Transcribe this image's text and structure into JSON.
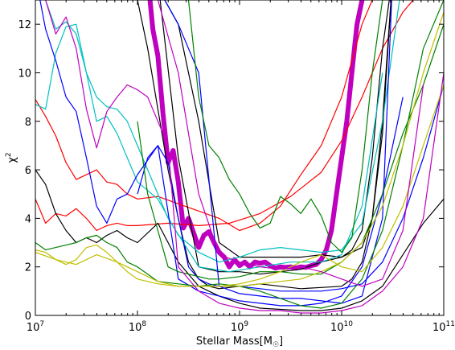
{
  "chart_data": {
    "type": "line",
    "xlabel": "Stellar Mass[M",
    "xlabel_sub": "☉",
    "xlabel_end": "]",
    "ylabel": "χ",
    "ylabel_sup": "2",
    "xscale": "log",
    "xlim": [
      10000000.0,
      100000000000.0
    ],
    "ylim": [
      0,
      13
    ],
    "grid": false,
    "x_ticks": [
      {
        "base": "10",
        "exp": "7",
        "value": 10000000.0
      },
      {
        "base": "10",
        "exp": "8",
        "value": 100000000.0
      },
      {
        "base": "10",
        "exp": "9",
        "value": 1000000000.0
      },
      {
        "base": "10",
        "exp": "10",
        "value": 10000000000.0
      },
      {
        "base": "10",
        "exp": "11",
        "value": 100000000000.0
      }
    ],
    "y_ticks": [
      "0",
      "2",
      "4",
      "6",
      "8",
      "10",
      "12"
    ],
    "series": [
      {
        "color": "#bf00bf",
        "width": 6,
        "log_x": [
          8.1,
          8.15,
          8.2,
          8.25,
          8.3,
          8.35,
          8.4,
          8.45,
          8.5,
          8.55,
          8.6,
          8.65,
          8.7,
          8.75,
          8.8,
          8.85,
          8.9,
          8.95,
          9.0,
          9.05,
          9.1,
          9.15,
          9.2,
          9.25,
          9.3,
          9.35,
          9.4,
          9.45,
          9.5,
          9.55,
          9.6,
          9.65,
          9.7,
          9.75,
          9.8,
          9.85,
          9.9,
          9.95,
          10.0,
          10.05,
          10.1,
          10.15,
          10.2,
          10.25,
          10.3,
          10.35
        ],
        "y": [
          14.0,
          11.8,
          10.7,
          8.3,
          6.3,
          6.8,
          5.5,
          3.6,
          4.0,
          3.4,
          2.8,
          3.3,
          3.45,
          3.0,
          2.6,
          2.4,
          2.0,
          2.3,
          2.05,
          2.2,
          2.0,
          2.2,
          2.15,
          2.2,
          2.05,
          1.95,
          2.0,
          1.98,
          2.0,
          1.95,
          2.0,
          1.98,
          2.05,
          2.1,
          2.3,
          2.7,
          3.5,
          5.0,
          6.5,
          8.0,
          10.0,
          12.0,
          13.0,
          14.0,
          14.0,
          14.0
        ]
      },
      {
        "color": "#ff0000",
        "width": 1.2,
        "log_x": [
          7.0,
          7.1,
          7.2,
          7.3,
          7.4,
          7.5,
          7.6,
          7.7,
          7.8,
          7.9,
          8.0,
          8.2,
          8.4,
          8.6,
          8.8,
          9.0,
          9.2,
          9.4,
          9.6,
          9.8,
          10.0,
          10.2,
          10.4
        ],
        "y": [
          8.9,
          8.2,
          7.4,
          6.3,
          5.6,
          5.8,
          6.0,
          5.5,
          5.4,
          5.0,
          4.8,
          4.9,
          4.6,
          4.3,
          4.0,
          3.5,
          3.8,
          4.5,
          5.8,
          7.0,
          9.0,
          12.0,
          14.0
        ]
      },
      {
        "color": "#ff0000",
        "width": 1.2,
        "log_x": [
          7.0,
          7.1,
          7.2,
          7.3,
          7.4,
          7.5,
          7.6,
          7.7,
          7.8,
          7.9,
          8.0,
          8.3,
          8.6,
          8.9,
          9.2,
          9.5,
          9.8,
          10.0,
          10.2,
          10.4,
          10.6,
          10.8,
          11.0
        ],
        "y": [
          4.8,
          3.8,
          4.2,
          4.1,
          4.4,
          4.0,
          3.5,
          3.7,
          3.8,
          3.7,
          3.7,
          3.8,
          3.7,
          3.8,
          4.2,
          4.9,
          5.9,
          7.2,
          9.0,
          11.0,
          12.5,
          13.5,
          14.0
        ]
      },
      {
        "color": "#000000",
        "width": 1.2,
        "log_x": [
          7.0,
          7.1,
          7.2,
          7.3,
          7.4,
          7.5,
          7.6,
          7.7,
          7.8,
          7.9,
          8.0,
          8.2,
          8.4,
          8.6,
          8.8,
          9.0,
          9.2,
          9.4,
          9.6,
          9.8,
          10.0,
          10.2,
          10.4,
          10.6,
          10.8,
          11.0
        ],
        "y": [
          6.0,
          5.4,
          4.2,
          3.5,
          3.0,
          3.2,
          3.0,
          3.3,
          3.5,
          3.2,
          3.0,
          3.8,
          2.2,
          1.2,
          0.8,
          0.5,
          0.3,
          0.25,
          0.2,
          0.2,
          0.3,
          0.6,
          1.2,
          2.5,
          3.8,
          4.8
        ]
      },
      {
        "color": "#000000",
        "width": 1.2,
        "log_x": [
          7.0,
          7.2,
          7.4,
          7.6,
          7.8,
          8.0,
          8.2,
          8.4,
          8.6,
          8.8,
          9.0,
          9.2,
          9.4,
          9.6,
          9.8,
          10.0,
          10.1,
          10.2,
          10.3,
          10.4,
          10.5
        ],
        "y": [
          14.0,
          13.5,
          14.0,
          13.0,
          13.8,
          14.0,
          13.8,
          6.5,
          2.0,
          1.8,
          1.8,
          1.7,
          1.8,
          1.9,
          2.2,
          2.4,
          2.7,
          3.5,
          6.5,
          11.0,
          14.0
        ]
      },
      {
        "color": "#000000",
        "width": 1.2,
        "log_x": [
          8.0,
          8.1,
          8.2,
          8.3,
          8.4,
          8.5,
          8.6,
          8.7,
          8.8,
          9.0,
          9.2,
          9.4,
          9.6,
          9.8,
          10.0,
          10.1,
          10.2,
          10.3,
          10.4,
          10.5
        ],
        "y": [
          13.0,
          11.0,
          8.5,
          6.0,
          4.0,
          2.2,
          1.5,
          1.2,
          1.1,
          1.2,
          1.3,
          1.2,
          1.1,
          1.15,
          1.2,
          1.5,
          2.2,
          4.0,
          8.0,
          14.0
        ]
      },
      {
        "color": "#000000",
        "width": 1.2,
        "log_x": [
          8.0,
          8.2,
          8.4,
          8.6,
          8.8,
          9.0,
          9.2,
          9.4,
          9.6,
          9.8,
          10.0,
          10.2,
          10.3,
          10.4,
          10.5
        ],
        "y": [
          14.0,
          13.5,
          12.0,
          8.0,
          3.0,
          2.4,
          2.4,
          2.4,
          2.4,
          2.5,
          2.4,
          2.8,
          4.0,
          7.5,
          14.0
        ]
      },
      {
        "color": "#00bfbf",
        "width": 1.2,
        "log_x": [
          7.0,
          7.1,
          7.2,
          7.3,
          7.4,
          7.5,
          7.6,
          7.7,
          7.8,
          7.9,
          8.0,
          8.2,
          8.4,
          8.6,
          8.8,
          9.0,
          9.2,
          9.4,
          9.6,
          9.8,
          10.0,
          10.2,
          10.4,
          10.6
        ],
        "y": [
          8.7,
          8.5,
          10.8,
          11.9,
          12.0,
          10.0,
          8.0,
          8.2,
          7.5,
          6.5,
          5.5,
          4.8,
          3.3,
          2.6,
          2.2,
          2.4,
          2.7,
          2.8,
          2.7,
          2.6,
          2.7,
          3.8,
          8.0,
          14.0
        ]
      },
      {
        "color": "#00bfbf",
        "width": 1.2,
        "log_x": [
          7.0,
          7.1,
          7.2,
          7.3,
          7.4,
          7.5,
          7.6,
          7.7,
          7.8,
          7.9,
          8.0,
          8.3,
          8.6,
          8.9,
          9.2,
          9.5,
          9.8,
          10.0,
          10.2,
          10.4
        ],
        "y": [
          14.0,
          13.0,
          11.8,
          12.1,
          11.6,
          10.0,
          9.0,
          8.6,
          8.5,
          8.0,
          7.0,
          4.0,
          2.0,
          1.8,
          2.0,
          2.2,
          2.2,
          2.5,
          4.5,
          10.0
        ]
      },
      {
        "color": "#0000ff",
        "width": 1.2,
        "log_x": [
          7.0,
          7.1,
          7.2,
          7.3,
          7.4,
          7.5,
          7.6,
          7.7,
          7.8,
          7.9,
          8.0,
          8.2,
          8.4,
          8.6,
          8.8,
          9.0,
          9.2,
          9.4,
          9.6,
          9.8,
          10.0,
          10.2,
          10.4,
          10.6
        ],
        "y": [
          14.0,
          11.8,
          10.5,
          9.0,
          8.4,
          6.5,
          4.5,
          3.8,
          4.8,
          5.0,
          5.8,
          7.0,
          1.5,
          1.0,
          0.8,
          0.6,
          0.5,
          0.4,
          0.4,
          0.5,
          0.8,
          2.0,
          5.0,
          9.0
        ]
      },
      {
        "color": "#0000ff",
        "width": 1.2,
        "log_x": [
          8.0,
          8.1,
          8.2,
          8.3,
          8.4,
          8.5,
          8.6,
          8.7,
          8.8,
          9.0,
          9.2,
          9.4,
          9.6,
          9.8,
          10.0,
          10.2,
          10.4,
          10.6,
          10.8,
          11.0
        ],
        "y": [
          5.0,
          6.5,
          7.0,
          6.3,
          4.0,
          2.0,
          1.5,
          1.3,
          1.2,
          1.2,
          1.1,
          1.0,
          1.0,
          1.0,
          1.1,
          1.3,
          2.2,
          4.0,
          6.5,
          9.5
        ]
      },
      {
        "color": "#0000ff",
        "width": 1.2,
        "log_x": [
          8.0,
          8.2,
          8.4,
          8.6,
          8.8,
          9.0,
          9.2,
          9.4,
          9.6,
          9.8,
          10.0,
          10.2,
          10.4,
          10.5
        ],
        "y": [
          14.0,
          13.5,
          12.0,
          10.0,
          1.2,
          0.9,
          0.8,
          0.7,
          0.7,
          0.6,
          0.5,
          0.8,
          4.0,
          14.0
        ]
      },
      {
        "color": "#008000",
        "width": 1.2,
        "log_x": [
          8.0,
          8.1,
          8.2,
          8.3,
          8.4,
          8.5,
          8.6,
          8.7,
          8.8,
          9.0,
          9.2,
          9.4,
          9.6,
          9.8,
          10.0,
          10.2,
          10.4,
          10.6,
          10.8,
          11.0
        ],
        "y": [
          8.0,
          5.0,
          3.5,
          2.0,
          1.8,
          1.7,
          1.6,
          1.5,
          1.5,
          1.6,
          1.8,
          1.8,
          1.7,
          1.7,
          2.2,
          3.0,
          5.0,
          7.5,
          9.5,
          12.0
        ]
      },
      {
        "color": "#008000",
        "width": 1.2,
        "log_x": [
          8.4,
          8.5,
          8.6,
          8.7,
          8.8,
          8.9,
          9.0,
          9.1,
          9.2,
          9.3,
          9.4,
          9.5,
          9.6,
          9.7,
          9.8,
          9.9,
          10.0,
          10.1,
          10.2,
          10.3,
          10.4,
          10.5
        ],
        "y": [
          14.0,
          13.0,
          9.0,
          7.0,
          6.5,
          5.6,
          5.0,
          4.2,
          3.6,
          3.8,
          4.9,
          4.6,
          4.2,
          4.8,
          4.1,
          3.0,
          2.6,
          3.2,
          6.0,
          10.0,
          13.0,
          14.0
        ]
      },
      {
        "color": "#008000",
        "width": 1.2,
        "log_x": [
          7.0,
          7.1,
          7.2,
          7.3,
          7.4,
          7.5,
          7.6,
          7.7,
          7.8,
          7.9,
          8.0,
          8.2,
          8.4,
          8.6,
          8.8,
          9.0,
          9.2,
          9.4,
          9.6,
          9.8,
          10.0,
          10.2,
          10.4,
          10.6,
          10.8,
          11.0
        ],
        "y": [
          3.0,
          2.7,
          2.8,
          2.9,
          3.0,
          3.2,
          3.3,
          3.0,
          2.8,
          2.2,
          2.0,
          1.4,
          1.3,
          1.2,
          1.3,
          1.2,
          1.0,
          0.7,
          0.4,
          0.3,
          0.5,
          1.5,
          3.5,
          7.0,
          11.0,
          13.0
        ]
      },
      {
        "color": "#bfbf00",
        "width": 1.2,
        "log_x": [
          7.0,
          7.1,
          7.2,
          7.3,
          7.4,
          7.5,
          7.6,
          7.7,
          7.8,
          7.9,
          8.0,
          8.2,
          8.4,
          8.6,
          8.8,
          9.0,
          9.2,
          9.4,
          9.6,
          9.8,
          10.0,
          10.2,
          10.4,
          10.6,
          10.8,
          11.0
        ],
        "y": [
          2.7,
          2.6,
          2.3,
          2.1,
          2.3,
          2.8,
          2.9,
          2.6,
          2.2,
          1.8,
          1.5,
          1.3,
          1.2,
          1.2,
          1.2,
          1.2,
          1.3,
          1.4,
          1.5,
          1.8,
          2.2,
          3.0,
          4.5,
          7.0,
          10.0,
          12.5
        ]
      },
      {
        "color": "#bfbf00",
        "width": 1.2,
        "log_x": [
          7.0,
          7.2,
          7.4,
          7.6,
          7.8,
          8.0,
          8.2,
          8.4,
          8.6,
          8.8,
          9.0,
          9.2,
          9.4,
          9.6,
          9.8,
          10.0,
          10.2,
          10.4,
          10.6,
          10.8,
          11.0
        ],
        "y": [
          2.6,
          2.3,
          2.1,
          2.5,
          2.2,
          1.8,
          1.4,
          1.2,
          1.2,
          1.2,
          1.3,
          1.5,
          1.8,
          2.2,
          2.5,
          2.0,
          1.8,
          2.8,
          4.5,
          7.0,
          9.5
        ]
      },
      {
        "color": "#bf00bf",
        "width": 1.2,
        "log_x": [
          7.0,
          7.1,
          7.2,
          7.3,
          7.4,
          7.5,
          7.6,
          7.7,
          7.8,
          7.9,
          8.0,
          8.1,
          8.2,
          8.3,
          8.4,
          8.6,
          8.8,
          9.0,
          9.2,
          9.4,
          9.6,
          9.8,
          10.0,
          10.2,
          10.4,
          10.6,
          10.8,
          11.0
        ],
        "y": [
          14.0,
          13.0,
          11.6,
          12.3,
          11.0,
          8.5,
          6.9,
          8.4,
          9.0,
          9.5,
          9.3,
          9.0,
          8.0,
          7.0,
          2.0,
          1.0,
          0.5,
          0.3,
          0.2,
          0.2,
          0.1,
          0.1,
          0.2,
          0.4,
          1.0,
          2.0,
          4.0,
          10.0
        ]
      },
      {
        "color": "#bf00bf",
        "width": 1.2,
        "log_x": [
          8.0,
          8.2,
          8.4,
          8.6,
          8.8,
          9.0,
          9.2,
          9.4,
          9.6,
          9.8,
          10.0,
          10.2,
          10.4,
          10.6,
          10.8
        ],
        "y": [
          14.0,
          13.0,
          10.0,
          5.0,
          2.5,
          2.2,
          2.0,
          1.9,
          2.0,
          1.8,
          1.5,
          1.2,
          1.5,
          3.5,
          9.5
        ]
      }
    ]
  }
}
